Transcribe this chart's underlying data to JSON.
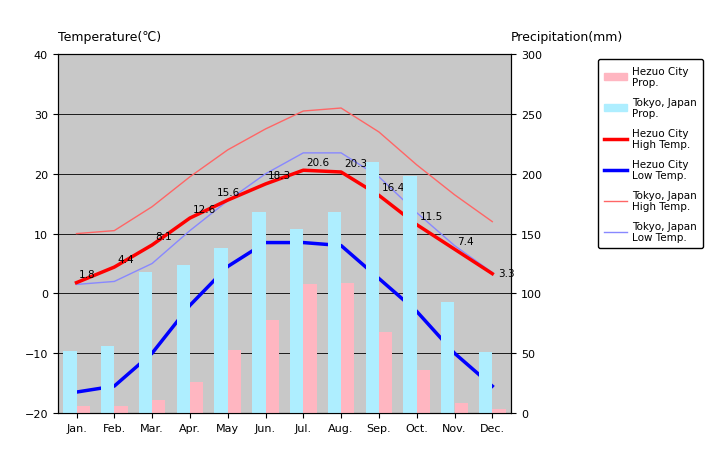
{
  "months": [
    "Jan.",
    "Feb.",
    "Mar.",
    "Apr.",
    "May",
    "Jun.",
    "Jul.",
    "Aug.",
    "Sep.",
    "Oct.",
    "Nov.",
    "Dec."
  ],
  "hezuo_high_temp": [
    1.8,
    4.4,
    8.1,
    12.6,
    15.6,
    18.3,
    20.6,
    20.3,
    16.4,
    11.5,
    7.4,
    3.3
  ],
  "hezuo_low_temp": [
    -16.5,
    -15.5,
    -10.0,
    -2.0,
    4.5,
    8.5,
    8.5,
    8.0,
    2.5,
    -3.0,
    -10.0,
    -15.5
  ],
  "tokyo_high_temp": [
    10.0,
    10.5,
    14.5,
    19.5,
    24.0,
    27.5,
    30.5,
    31.0,
    27.0,
    21.5,
    16.5,
    12.0
  ],
  "tokyo_low_temp": [
    1.5,
    2.0,
    5.0,
    10.5,
    15.5,
    20.0,
    23.5,
    23.5,
    19.5,
    13.5,
    8.0,
    3.5
  ],
  "hezuo_precip": [
    6.0,
    6.0,
    11.0,
    26.0,
    53.0,
    78.0,
    108.0,
    109.0,
    68.0,
    36.0,
    8.0,
    3.0
  ],
  "tokyo_precip": [
    52.0,
    56.0,
    118.0,
    124.0,
    138.0,
    168.0,
    154.0,
    168.0,
    210.0,
    198.0,
    93.0,
    51.0
  ],
  "hezuo_precip_color": "#FFB6C1",
  "tokyo_precip_color": "#AEEEFF",
  "hezuo_high_color": "#FF0000",
  "hezuo_low_color": "#0000FF",
  "tokyo_high_color": "#FF6666",
  "tokyo_low_color": "#8888FF",
  "temp_ylim": [
    -20,
    40
  ],
  "precip_ylim": [
    0,
    300
  ],
  "bg_color": "#C8C8C8",
  "title_left": "Temperature(℃)",
  "title_right": "Precipitation(mm)",
  "hezuo_high_labels": [
    1.8,
    4.4,
    8.1,
    12.6,
    15.6,
    18.3,
    20.6,
    20.3,
    16.4,
    11.5,
    7.4,
    3.3
  ]
}
